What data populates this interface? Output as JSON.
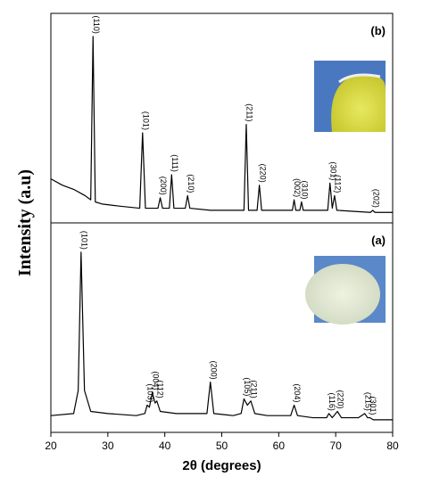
{
  "chart_data": [
    {
      "type": "line",
      "panel_label": "(b)",
      "ylabel": "Intensity (a.u)",
      "color": "#000000",
      "xlim": [
        20,
        80
      ],
      "ylim": [
        0,
        100
      ],
      "x": [
        20,
        22,
        24,
        26,
        27.0,
        27.4,
        27.8,
        29,
        32,
        35.6,
        36.1,
        36.6,
        38.8,
        39.2,
        39.6,
        40.8,
        41.2,
        41.6,
        43.6,
        44.0,
        44.4,
        48,
        53.9,
        54.3,
        54.7,
        56.2,
        56.6,
        57.0,
        62.4,
        62.7,
        63.0,
        63.7,
        64.0,
        64.3,
        68.6,
        69.0,
        69.4,
        69.8,
        70.2,
        76.1,
        76.5,
        76.9,
        80
      ],
      "values": [
        21,
        18,
        16,
        13,
        11,
        89,
        10,
        9,
        8,
        7,
        43,
        7,
        7,
        12,
        7,
        7,
        23,
        7,
        7,
        13,
        7,
        6,
        6,
        47,
        6,
        6,
        18,
        6,
        6,
        11,
        6,
        6,
        10,
        6,
        6,
        19,
        7,
        13,
        6,
        5,
        6,
        5,
        5
      ],
      "annotations": [
        {
          "text": "(110)",
          "x": 27.4
        },
        {
          "text": "(101)",
          "x": 36.1
        },
        {
          "text": "(200)",
          "x": 39.2
        },
        {
          "text": "(111)",
          "x": 41.2
        },
        {
          "text": "(210)",
          "x": 44.0
        },
        {
          "text": "(211)",
          "x": 54.3
        },
        {
          "text": "(220)",
          "x": 56.6
        },
        {
          "text": "(002)",
          "x": 62.7
        },
        {
          "text": "(310)",
          "x": 64.0
        },
        {
          "text": "(301)",
          "x": 69.0
        },
        {
          "text": "(112)",
          "x": 69.8
        },
        {
          "text": "(202)",
          "x": 76.5
        }
      ]
    },
    {
      "type": "line",
      "panel_label": "(a)",
      "xlabel": "2θ (degrees)",
      "color": "#000000",
      "xlim": [
        20,
        80
      ],
      "ylim": [
        0,
        100
      ],
      "xticks": [
        20,
        30,
        40,
        50,
        60,
        70,
        80
      ],
      "x": [
        20,
        24,
        24.8,
        25.3,
        25.9,
        27,
        30,
        35,
        36.5,
        36.9,
        37.3,
        37.8,
        38.3,
        38.6,
        39.2,
        42,
        47.4,
        48.0,
        48.6,
        52,
        53.4,
        53.9,
        54.5,
        55.1,
        55.8,
        58,
        62.1,
        62.7,
        63.3,
        66,
        68.4,
        68.8,
        69.4,
        70.3,
        71.0,
        74,
        75.1,
        75.6,
        76.0,
        76.6,
        80
      ],
      "values": [
        8,
        9,
        20,
        86,
        20,
        10,
        9,
        8,
        9,
        13,
        12,
        19,
        14,
        15,
        10,
        9,
        9,
        24,
        9,
        8,
        9,
        16,
        13,
        15,
        9,
        8,
        8,
        13,
        8,
        7,
        7,
        9,
        7,
        10,
        7,
        7,
        9,
        7,
        7,
        6,
        6
      ],
      "annotations": [
        {
          "text": "(101)",
          "x": 25.3
        },
        {
          "text": "(103)",
          "x": 36.9
        },
        {
          "text": "(004)",
          "x": 37.8
        },
        {
          "text": "(112)",
          "x": 38.6
        },
        {
          "text": "(200)",
          "x": 48.0
        },
        {
          "text": "(105)",
          "x": 53.9
        },
        {
          "text": "(211)",
          "x": 55.1
        },
        {
          "text": "(204)",
          "x": 62.7
        },
        {
          "text": "(116)",
          "x": 68.8
        },
        {
          "text": "(220)",
          "x": 70.3
        },
        {
          "text": "(215)",
          "x": 75.1
        },
        {
          "text": "(301)",
          "x": 76.0
        }
      ]
    }
  ]
}
